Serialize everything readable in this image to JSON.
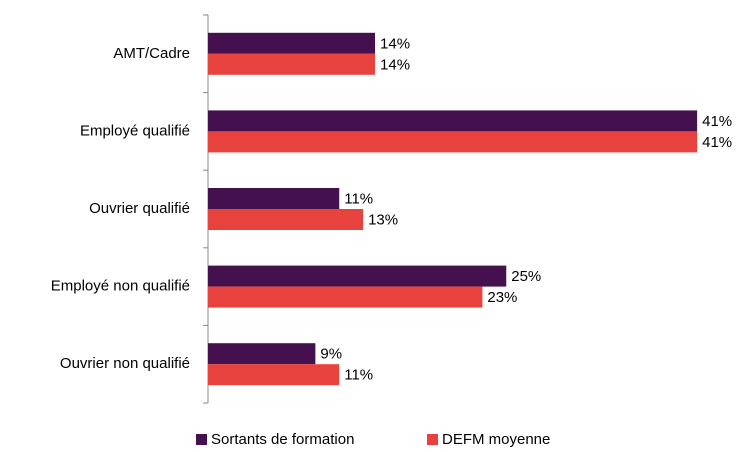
{
  "chart_data": {
    "type": "hbar",
    "categories": [
      "AMT/Cadre",
      "Employé qualifié",
      "Ouvrier qualifié",
      "Employé non qualifié",
      "Ouvrier non qualifié"
    ],
    "series": [
      {
        "name": "Sortants de formation",
        "color": "#44114e",
        "values": [
          14,
          41,
          11,
          25,
          9
        ],
        "value_labels": [
          "14%",
          "41%",
          "11%",
          "25%",
          "9%"
        ]
      },
      {
        "name": "DEFM moyenne",
        "color": "#e8423f",
        "values": [
          14,
          41,
          13,
          23,
          11
        ],
        "value_labels": [
          "14%",
          "41%",
          "13%",
          "23%",
          "11%"
        ]
      }
    ],
    "legend": "bottom"
  }
}
